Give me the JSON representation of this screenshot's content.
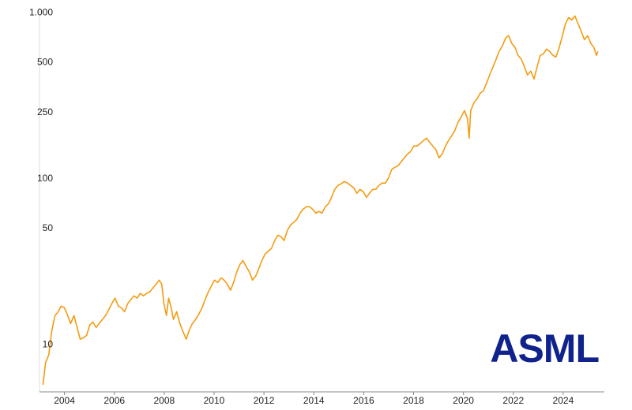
{
  "chart_data": {
    "type": "line",
    "color": "#f39c12",
    "log_scale": true,
    "grid": false,
    "x": [
      2003.14,
      2003.24,
      2003.37,
      2003.49,
      2003.62,
      2003.75,
      2003.87,
      2004.0,
      2004.13,
      2004.25,
      2004.38,
      2004.51,
      2004.63,
      2004.76,
      2004.89,
      2005.01,
      2005.14,
      2005.27,
      2005.39,
      2005.52,
      2005.65,
      2005.77,
      2005.9,
      2006.03,
      2006.16,
      2006.28,
      2006.41,
      2006.54,
      2006.66,
      2006.79,
      2006.92,
      2007.04,
      2007.17,
      2007.3,
      2007.42,
      2007.55,
      2007.68,
      2007.8,
      2007.9,
      2007.99,
      2008.09,
      2008.18,
      2008.28,
      2008.37,
      2008.5,
      2008.63,
      2008.75,
      2008.88,
      2009.01,
      2009.13,
      2009.26,
      2009.39,
      2009.52,
      2009.64,
      2009.77,
      2009.9,
      2010.02,
      2010.15,
      2010.28,
      2010.4,
      2010.53,
      2010.66,
      2010.78,
      2010.91,
      2011.04,
      2011.16,
      2011.29,
      2011.42,
      2011.54,
      2011.67,
      2011.8,
      2011.92,
      2012.05,
      2012.18,
      2012.3,
      2012.43,
      2012.56,
      2012.68,
      2012.81,
      2012.94,
      2013.07,
      2013.19,
      2013.32,
      2013.45,
      2013.57,
      2013.7,
      2013.83,
      2013.95,
      2014.08,
      2014.21,
      2014.33,
      2014.46,
      2014.59,
      2014.71,
      2014.84,
      2014.97,
      2015.09,
      2015.22,
      2015.35,
      2015.47,
      2015.6,
      2015.73,
      2015.85,
      2015.98,
      2016.11,
      2016.23,
      2016.36,
      2016.49,
      2016.61,
      2016.74,
      2016.87,
      2017.0,
      2017.12,
      2017.25,
      2017.38,
      2017.5,
      2017.63,
      2017.76,
      2017.88,
      2018.01,
      2018.14,
      2018.26,
      2018.39,
      2018.52,
      2018.64,
      2018.77,
      2018.9,
      2019.02,
      2019.15,
      2019.28,
      2019.4,
      2019.53,
      2019.66,
      2019.78,
      2019.91,
      2020.04,
      2020.16,
      2020.23,
      2020.29,
      2020.42,
      2020.55,
      2020.67,
      2020.8,
      2020.93,
      2021.05,
      2021.18,
      2021.31,
      2021.43,
      2021.56,
      2021.69,
      2021.81,
      2021.94,
      2022.07,
      2022.19,
      2022.32,
      2022.45,
      2022.57,
      2022.7,
      2022.83,
      2022.95,
      2023.08,
      2023.21,
      2023.33,
      2023.46,
      2023.59,
      2023.71,
      2023.84,
      2023.97,
      2024.09,
      2024.22,
      2024.35,
      2024.47,
      2024.6,
      2024.73,
      2024.85,
      2024.98,
      2025.11,
      2025.23,
      2025.33,
      2025.39
    ],
    "values": [
      5.73,
      7.78,
      8.67,
      12.05,
      15.0,
      15.8,
      17.1,
      16.7,
      15.0,
      13.4,
      15.0,
      12.7,
      10.8,
      11.0,
      11.4,
      13.1,
      13.7,
      12.7,
      13.4,
      14.2,
      15.0,
      16.2,
      17.7,
      19.1,
      17.1,
      16.7,
      15.8,
      17.7,
      18.7,
      19.7,
      19.1,
      20.4,
      19.7,
      20.4,
      20.8,
      22.0,
      23.2,
      24.5,
      23.2,
      17.7,
      15.0,
      19.1,
      16.7,
      14.2,
      15.8,
      13.4,
      12.05,
      10.8,
      12.3,
      13.4,
      14.2,
      15.3,
      16.7,
      18.7,
      20.8,
      22.7,
      24.5,
      23.7,
      25.3,
      24.5,
      23.2,
      21.3,
      23.7,
      27.4,
      30.5,
      32.2,
      29.5,
      27.4,
      24.5,
      25.9,
      28.9,
      32.2,
      35.2,
      36.7,
      38.0,
      42.4,
      45.7,
      44.8,
      42.4,
      48.9,
      52.7,
      54.5,
      56.9,
      62.1,
      65.6,
      67.8,
      67.8,
      65.6,
      62.1,
      63.5,
      62.1,
      67.8,
      70.8,
      77.3,
      86.3,
      91.2,
      93.1,
      96.2,
      94.2,
      91.2,
      88.1,
      81.7,
      86.3,
      83.6,
      77.3,
      81.7,
      86.3,
      86.3,
      91.2,
      94.2,
      94.2,
      101.6,
      113.5,
      117.2,
      119.7,
      126.5,
      133.6,
      141.1,
      145.8,
      157.4,
      157.4,
      162.6,
      169.8,
      175.6,
      166.3,
      157.4,
      149.0,
      133.6,
      141.1,
      157.4,
      169.8,
      181.6,
      196.0,
      218.6,
      236.1,
      257.6,
      230.8,
      175.6,
      257.6,
      287.1,
      303.5,
      327.6,
      338.5,
      377.6,
      421.7,
      469.9,
      524.8,
      585.1,
      631.0,
      704.7,
      727.8,
      653.1,
      618.0,
      553.4,
      524.8,
      469.9,
      421.7,
      444.6,
      398.8,
      469.9,
      553.4,
      566.2,
      604.0,
      585.1,
      553.4,
      541.5,
      618.0,
      727.8,
      857.0,
      935.4,
      905.7,
      957.2,
      857.0,
      769.2,
      688.6,
      727.8,
      653.1,
      618.0,
      553.4,
      585.1
    ],
    "xlim": [
      2003.0,
      2025.65
    ],
    "xticks": [
      2004,
      2006,
      2008,
      2010,
      2012,
      2014,
      2016,
      2018,
      2020,
      2022,
      2024
    ],
    "ylim": [
      5.2,
      1070
    ],
    "yticks": [
      {
        "value": 1000,
        "label": "1.000"
      },
      500,
      250,
      100,
      50,
      10
    ]
  },
  "logo": "ASML"
}
